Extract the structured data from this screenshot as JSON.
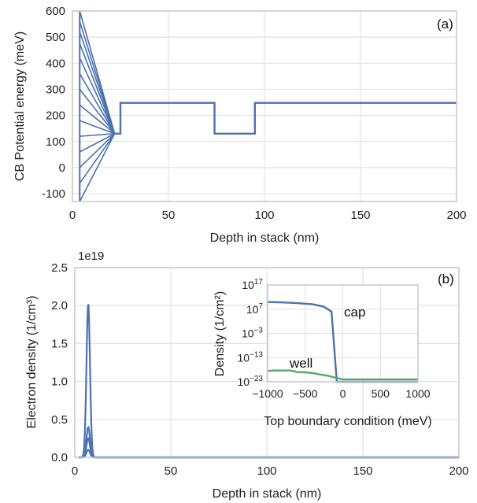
{
  "chart_data": [
    {
      "type": "line",
      "panel_label": "(a)",
      "xlabel": "Depth in stack (nm)",
      "ylabel": "CB Potential energy (meV)",
      "xlim": [
        0,
        200
      ],
      "ylim": [
        -130,
        600
      ],
      "xticks": [
        "0",
        "50",
        "100",
        "150",
        "200"
      ],
      "yticks": [
        "-100",
        "0",
        "100",
        "200",
        "300",
        "400",
        "500",
        "600"
      ],
      "grid": true,
      "color": "#4c72b0",
      "fan": {
        "x_start": 3.8,
        "x_end": 22,
        "y_end": 130,
        "start_values": [
          600,
          560,
          520,
          475,
          420,
          360,
          300,
          240,
          180,
          120,
          60,
          0,
          -60,
          -130
        ]
      },
      "profile": {
        "x": [
          22,
          25,
          25,
          74,
          74,
          95,
          95,
          200
        ],
        "y": [
          130,
          130,
          248,
          248,
          130,
          130,
          248,
          248
        ]
      }
    },
    {
      "type": "line",
      "panel_label": "(b)",
      "xlabel": "Depth in stack (nm)",
      "ylabel": "Electron density (1/cm³)",
      "scale_label": "1e19",
      "xlim": [
        0,
        200
      ],
      "ylim": [
        0,
        2.5
      ],
      "xticks": [
        "0",
        "50",
        "100",
        "150",
        "200"
      ],
      "yticks": [
        "0.0",
        "0.5",
        "1.0",
        "1.5",
        "2.0",
        "2.5"
      ],
      "grid": true,
      "color": "#4c72b0",
      "peak_x": 7,
      "peak_values": [
        2.03,
        0.4,
        0.25,
        0.1
      ]
    },
    {
      "type": "line",
      "xlabel": "Top boundary condition (meV)",
      "ylabel": "Density (1/cm²)",
      "xlim": [
        -1000,
        1000
      ],
      "xticks": [
        "−1000",
        "−500",
        "0",
        "500",
        "1000"
      ],
      "ytick_exponents": [
        "17",
        "7",
        "-3",
        "-13",
        "-23"
      ],
      "ylim_log10": [
        -23,
        17
      ],
      "series": [
        {
          "name": "cap",
          "color": "#4c72b0",
          "x": [
            -1000,
            -800,
            -600,
            -400,
            -250,
            -150,
            -80,
            1000
          ],
          "log10_y": [
            10,
            9.8,
            9.5,
            9,
            8,
            6,
            -23,
            -23
          ]
        },
        {
          "name": "well",
          "color": "#55a868",
          "x": [
            -1000,
            -900,
            -800,
            -700,
            -600,
            -500,
            -400,
            -300,
            -200,
            -100,
            0,
            500,
            1000
          ],
          "log10_y": [
            -18.5,
            -18.3,
            -18.4,
            -18.3,
            -19,
            -19.1,
            -19.4,
            -20,
            -20.5,
            -21.3,
            -22,
            -22,
            -22
          ]
        }
      ]
    }
  ]
}
